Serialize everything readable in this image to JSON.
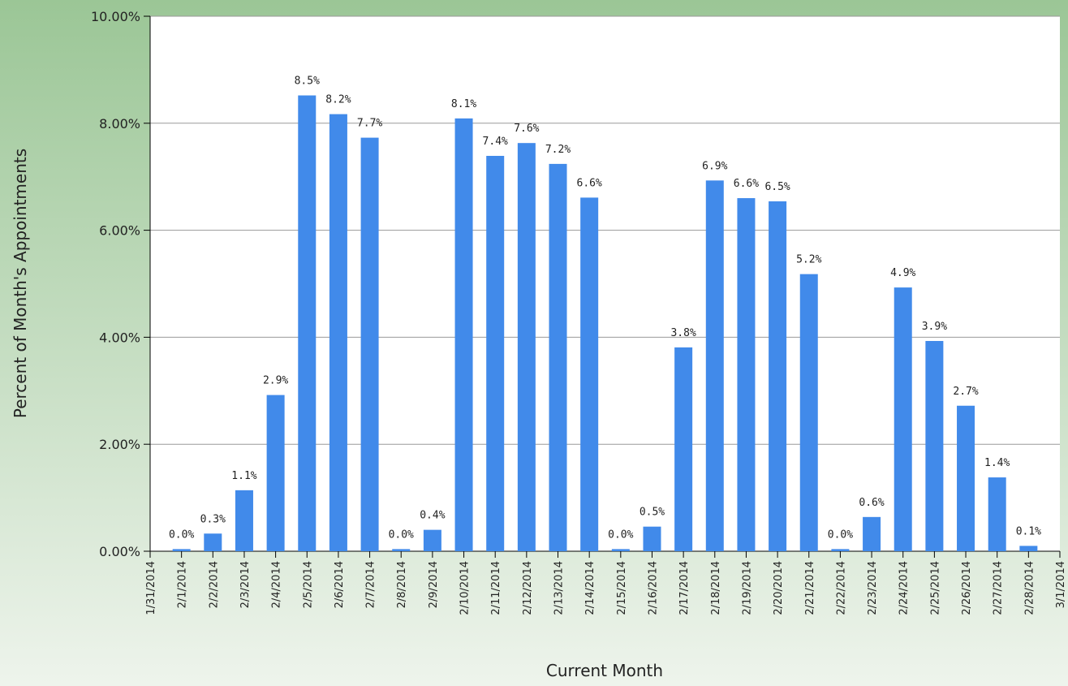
{
  "chart_data": {
    "type": "bar",
    "x_label": "Current Month",
    "y_label": "Percent of Month's Appointments",
    "x": [
      "2/1/2014",
      "2/2/2014",
      "2/3/2014",
      "2/4/2014",
      "2/5/2014",
      "2/6/2014",
      "2/7/2014",
      "2/8/2014",
      "2/9/2014",
      "2/10/2014",
      "2/11/2014",
      "2/12/2014",
      "2/13/2014",
      "2/14/2014",
      "2/15/2014",
      "2/16/2014",
      "2/17/2014",
      "2/18/2014",
      "2/19/2014",
      "2/20/2014",
      "2/21/2014",
      "2/22/2014",
      "2/23/2014",
      "2/24/2014",
      "2/25/2014",
      "2/26/2014",
      "2/27/2014",
      "2/28/2014"
    ],
    "values": [
      0.04,
      0.33,
      1.14,
      2.92,
      8.52,
      8.17,
      7.73,
      0.04,
      0.4,
      8.09,
      7.39,
      7.63,
      7.24,
      6.61,
      0.04,
      0.46,
      3.81,
      6.93,
      6.6,
      6.54,
      5.18,
      0.04,
      0.64,
      4.93,
      3.93,
      2.72,
      1.38,
      0.1
    ],
    "value_labels": [
      "0.0%",
      "0.3%",
      "1.1%",
      "2.9%",
      "8.5%",
      "8.2%",
      "7.7%",
      "0.0%",
      "0.4%",
      "8.1%",
      "7.4%",
      "7.6%",
      "7.2%",
      "6.6%",
      "0.0%",
      "0.5%",
      "3.8%",
      "6.9%",
      "6.6%",
      "6.5%",
      "5.2%",
      "0.0%",
      "0.6%",
      "4.9%",
      "3.9%",
      "2.7%",
      "1.4%",
      "0.1%"
    ],
    "color": "#418aea",
    "xlim": [
      "1/31/2014",
      "3/1/2014"
    ],
    "xticks": [
      "1/31/2014",
      "2/1/2014",
      "2/2/2014",
      "2/3/2014",
      "2/4/2014",
      "2/5/2014",
      "2/6/2014",
      "2/7/2014",
      "2/8/2014",
      "2/9/2014",
      "2/10/2014",
      "2/11/2014",
      "2/12/2014",
      "2/13/2014",
      "2/14/2014",
      "2/15/2014",
      "2/16/2014",
      "2/17/2014",
      "2/18/2014",
      "2/19/2014",
      "2/20/2014",
      "2/21/2014",
      "2/22/2014",
      "2/23/2014",
      "2/24/2014",
      "2/25/2014",
      "2/26/2014",
      "2/27/2014",
      "2/28/2014",
      "3/1/2014"
    ],
    "ylim": [
      0,
      10
    ],
    "yticks": [
      {
        "value": 0,
        "label": "0.00%"
      },
      {
        "value": 2,
        "label": "2.00%"
      },
      {
        "value": 4,
        "label": "4.00%"
      },
      {
        "value": 6,
        "label": "6.00%"
      },
      {
        "value": 8,
        "label": "8.00%"
      },
      {
        "value": 10,
        "label": "10.00%"
      }
    ],
    "grid": true
  }
}
